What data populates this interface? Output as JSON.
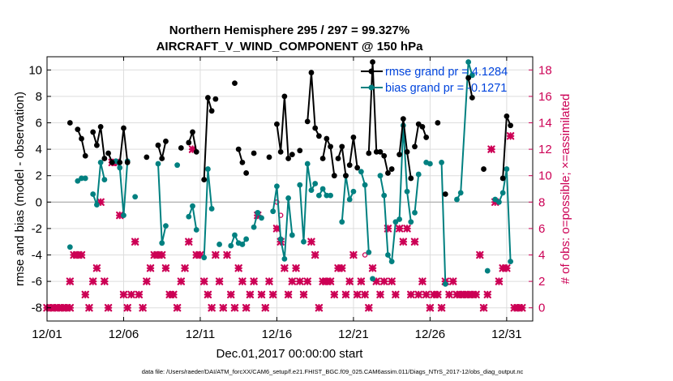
{
  "chart_data": {
    "type": "line",
    "title": "Northern Hemisphere 295 / 297 = 99.327%",
    "subtitle": "AIRCRAFT_V_WIND_COMPONENT @ 150 hPa",
    "xlabel": "Dec.01,2017 00:00:00 start",
    "ylabel": "rmse and bias (model - observation)",
    "y2label": "# of obs: o=possible; ×=assimilated",
    "footer": "data file: /Users/raeder/DAI/ATM_forcXX/CAM6_setup/f.e21.FHIST_BGC.f09_025.CAM6assim.011/Diags_NTrS_2017-12/obs_diag_output.nc",
    "xlim": [
      0,
      31.7
    ],
    "ylim": [
      -9,
      11
    ],
    "y2lim": [
      -1,
      19
    ],
    "grid": true,
    "x_ticks": [
      0,
      5,
      10,
      15,
      20,
      25,
      30
    ],
    "x_tick_labels": [
      "12/01",
      "12/06",
      "12/11",
      "12/16",
      "12/21",
      "12/26",
      "12/31"
    ],
    "y_ticks": [
      -8,
      -6,
      -4,
      -2,
      0,
      2,
      4,
      6,
      8,
      10
    ],
    "y_tick_labels": [
      "-8",
      "-6",
      "-4",
      "-2",
      "0",
      "2",
      "4",
      "6",
      "8",
      "10"
    ],
    "y2_ticks": [
      0,
      2,
      4,
      6,
      8,
      10,
      12,
      14,
      16,
      18
    ],
    "y2_tick_labels": [
      "0",
      "2",
      "4",
      "6",
      "8",
      "10",
      "12",
      "14",
      "16",
      "18"
    ],
    "legend_position": "top-right",
    "colors": {
      "rmse": "#000000",
      "bias": "#008080",
      "obs": "#cc0055",
      "legend_text": "#0044dd",
      "zero_line": "#aaaaaa",
      "grid": "#dddddd"
    },
    "series": [
      {
        "name": "rmse grand pr = 4.1284",
        "axis": "left",
        "color": "#000000",
        "segments": [
          [
            [
              1.5,
              6.0
            ]
          ],
          [
            [
              2.0,
              5.5
            ],
            [
              2.25,
              4.8
            ],
            [
              2.5,
              3.5
            ]
          ],
          [
            [
              3.0,
              5.3
            ],
            [
              3.25,
              4.3
            ],
            [
              3.5,
              5.7
            ],
            [
              3.75,
              3.3
            ]
          ],
          [
            [
              4.0,
              3.7
            ],
            [
              4.25,
              3.0
            ]
          ],
          [
            [
              4.75,
              3.0
            ],
            [
              5.0,
              5.6
            ],
            [
              5.25,
              3.0
            ]
          ],
          [
            [
              6.5,
              3.4
            ]
          ],
          [
            [
              7.25,
              4.3
            ],
            [
              7.5,
              3.3
            ],
            [
              7.75,
              4.6
            ]
          ],
          [
            [
              8.75,
              4.1
            ]
          ],
          [
            [
              9.25,
              4.5
            ],
            [
              9.5,
              5.3
            ],
            [
              9.75,
              3.8
            ]
          ],
          [
            [
              10.25,
              1.7
            ],
            [
              10.5,
              7.9
            ],
            [
              10.75,
              6.9
            ]
          ],
          [
            [
              11.0,
              7.8
            ]
          ],
          [
            [
              12.25,
              9.0
            ]
          ],
          [
            [
              12.5,
              4.0
            ],
            [
              12.75,
              3.0
            ]
          ],
          [
            [
              13.0,
              2.2
            ]
          ],
          [
            [
              13.5,
              3.7
            ]
          ],
          [
            [
              14.5,
              3.4
            ]
          ],
          [
            [
              15.0,
              5.9
            ],
            [
              15.25,
              3.8
            ],
            [
              15.5,
              8.0
            ],
            [
              15.75,
              3.3
            ]
          ],
          [
            [
              16.0,
              3.6
            ]
          ],
          [
            [
              16.5,
              3.9
            ]
          ],
          [
            [
              17.0,
              6.1
            ],
            [
              17.25,
              9.8
            ],
            [
              17.5,
              5.6
            ],
            [
              17.75,
              5.0
            ]
          ],
          [
            [
              18.0,
              3.3
            ],
            [
              18.25,
              4.8
            ],
            [
              18.5,
              4.2
            ],
            [
              18.75,
              2.0
            ]
          ],
          [
            [
              19.0,
              3.3
            ],
            [
              19.25,
              4.2
            ],
            [
              19.5,
              2.0
            ]
          ],
          [
            [
              19.75,
              2.8
            ],
            [
              20.0,
              4.9
            ],
            [
              20.25,
              2.6
            ]
          ],
          [
            [
              21.0,
              3.7
            ],
            [
              21.25,
              10.6
            ],
            [
              21.5,
              3.8
            ]
          ],
          [
            [
              21.75,
              3.8
            ],
            [
              22.0,
              3.5
            ],
            [
              22.25,
              2.2
            ]
          ],
          [
            [
              22.5,
              2.5
            ]
          ],
          [
            [
              23.0,
              3.6
            ],
            [
              23.25,
              6.3
            ],
            [
              23.5,
              3.8
            ],
            [
              23.75,
              1.8
            ]
          ],
          [
            [
              24.0,
              4.2
            ],
            [
              24.25,
              5.9
            ],
            [
              24.5,
              5.7
            ],
            [
              24.75,
              4.9
            ]
          ],
          [
            [
              25.5,
              6.0
            ]
          ],
          [
            [
              26.0,
              0.6
            ]
          ],
          [
            [
              27.5,
              9.4
            ],
            [
              27.75,
              7.9
            ]
          ],
          [
            [
              28.5,
              2.5
            ]
          ],
          [
            [
              29.75,
              1.8
            ],
            [
              30.0,
              6.5
            ],
            [
              30.25,
              5.8
            ]
          ]
        ]
      },
      {
        "name": "bias grand pr = -0.1271",
        "axis": "left",
        "color": "#008080",
        "segments": [
          [
            [
              1.5,
              -3.4
            ]
          ],
          [
            [
              2.0,
              1.6
            ],
            [
              2.25,
              1.8
            ],
            [
              2.5,
              1.8
            ]
          ],
          [
            [
              3.0,
              0.6
            ],
            [
              3.25,
              -0.2
            ],
            [
              3.5,
              3.0
            ],
            [
              3.75,
              1.7
            ]
          ],
          [
            [
              4.5,
              3.1
            ],
            [
              4.75,
              2.6
            ],
            [
              5.0,
              -1.0
            ],
            [
              5.25,
              3.1
            ]
          ],
          [
            [
              5.75,
              0.4
            ]
          ],
          [
            [
              7.25,
              2.9
            ],
            [
              7.5,
              -3.1
            ],
            [
              7.75,
              -1.8
            ]
          ],
          [
            [
              8.5,
              2.8
            ]
          ],
          [
            [
              9.25,
              -1.1
            ],
            [
              9.5,
              -0.3
            ],
            [
              9.75,
              -2.1
            ]
          ],
          [
            [
              10.25,
              -4.2
            ],
            [
              10.5,
              2.5
            ],
            [
              10.75,
              -0.5
            ]
          ],
          [
            [
              11.25,
              -3.2
            ]
          ],
          [
            [
              12.0,
              -3.3
            ],
            [
              12.25,
              -2.5
            ],
            [
              12.5,
              -3.1
            ]
          ],
          [
            [
              12.75,
              -3.2
            ],
            [
              13.0,
              -2.8
            ]
          ],
          [
            [
              13.5,
              -1.9
            ],
            [
              13.75,
              -0.8
            ],
            [
              14.0,
              -1.2
            ]
          ],
          [
            [
              14.75,
              -0.7
            ],
            [
              15.0,
              1.2
            ],
            [
              15.25,
              -2.8
            ],
            [
              15.5,
              -4.3
            ],
            [
              15.75,
              0.3
            ],
            [
              16.0,
              -2.5
            ]
          ],
          [
            [
              16.5,
              1.3
            ],
            [
              16.75,
              -3.0
            ],
            [
              17.0,
              2.9
            ],
            [
              17.25,
              0.9
            ],
            [
              17.5,
              1.4
            ]
          ],
          [
            [
              17.75,
              0.5
            ],
            [
              18.0,
              1.0
            ],
            [
              18.25,
              0.5
            ],
            [
              18.5,
              0.5
            ]
          ],
          [
            [
              19.25,
              -1.5
            ],
            [
              19.5,
              2.0
            ],
            [
              19.75,
              0.2
            ],
            [
              20.0,
              0.8
            ]
          ],
          [
            [
              20.5,
              2.3
            ],
            [
              20.75,
              1.3
            ],
            [
              21.0,
              -3.8
            ]
          ],
          [
            [
              21.25,
              -5.8
            ]
          ],
          [
            [
              21.75,
              2.0
            ],
            [
              22.0,
              0.5
            ],
            [
              22.25,
              -4.0
            ],
            [
              22.5,
              -4.5
            ],
            [
              22.75,
              -1.5
            ]
          ],
          [
            [
              23.0,
              -1.3
            ],
            [
              23.25,
              5.8
            ],
            [
              23.5,
              0.8
            ],
            [
              23.75,
              -1.5
            ]
          ],
          [
            [
              24.0,
              -0.8
            ],
            [
              24.25,
              2.1
            ]
          ],
          [
            [
              24.75,
              3.0
            ],
            [
              25.0,
              2.9
            ]
          ],
          [
            [
              25.75,
              3.0
            ],
            [
              26.0,
              -6.2
            ]
          ],
          [
            [
              26.75,
              0.2
            ],
            [
              27.0,
              0.7
            ],
            [
              27.5,
              10.6
            ],
            [
              27.75,
              9.6
            ]
          ],
          [
            [
              28.75,
              -5.2
            ]
          ],
          [
            [
              29.25,
              0.2
            ],
            [
              29.5,
              0.0
            ],
            [
              29.75,
              0.7
            ],
            [
              30.0,
              2.5
            ],
            [
              30.25,
              -4.5
            ]
          ]
        ]
      }
    ],
    "obs_assimilated": [
      [
        0.0,
        0
      ],
      [
        0.25,
        0
      ],
      [
        0.5,
        0
      ],
      [
        0.75,
        0
      ],
      [
        1.0,
        0
      ],
      [
        1.25,
        0
      ],
      [
        1.5,
        0
      ],
      [
        1.5,
        2
      ],
      [
        1.75,
        4
      ],
      [
        2.0,
        4
      ],
      [
        2.25,
        4
      ],
      [
        2.5,
        1
      ],
      [
        2.75,
        0
      ],
      [
        3.0,
        2
      ],
      [
        3.25,
        3
      ],
      [
        3.5,
        8
      ],
      [
        3.75,
        2
      ],
      [
        4.0,
        0
      ],
      [
        4.25,
        11
      ],
      [
        4.5,
        11
      ],
      [
        4.75,
        7
      ],
      [
        5.0,
        1
      ],
      [
        5.25,
        0
      ],
      [
        5.5,
        1
      ],
      [
        5.75,
        5
      ],
      [
        6.0,
        1
      ],
      [
        6.25,
        0
      ],
      [
        6.5,
        2
      ],
      [
        6.75,
        3
      ],
      [
        7.0,
        4
      ],
      [
        7.25,
        4
      ],
      [
        7.5,
        4
      ],
      [
        7.75,
        3
      ],
      [
        8.0,
        1
      ],
      [
        8.25,
        1
      ],
      [
        8.5,
        0
      ],
      [
        8.75,
        2
      ],
      [
        9.0,
        3
      ],
      [
        9.25,
        5
      ],
      [
        9.5,
        12
      ],
      [
        9.75,
        4
      ],
      [
        10.0,
        4
      ],
      [
        10.25,
        2
      ],
      [
        10.5,
        1
      ],
      [
        10.75,
        0
      ],
      [
        11.0,
        4
      ],
      [
        11.25,
        2
      ],
      [
        11.5,
        0
      ],
      [
        11.75,
        4
      ],
      [
        12.0,
        1
      ],
      [
        12.25,
        0
      ],
      [
        12.5,
        3
      ],
      [
        12.75,
        2
      ],
      [
        13.0,
        0
      ],
      [
        13.25,
        1
      ],
      [
        13.5,
        2
      ],
      [
        13.75,
        7
      ],
      [
        14.0,
        1
      ],
      [
        14.25,
        0
      ],
      [
        14.5,
        2
      ],
      [
        14.75,
        1
      ],
      [
        15.0,
        6
      ],
      [
        15.25,
        5
      ],
      [
        15.5,
        3
      ],
      [
        15.75,
        1
      ],
      [
        16.0,
        2
      ],
      [
        16.25,
        3
      ],
      [
        16.5,
        2
      ],
      [
        16.75,
        1
      ],
      [
        17.0,
        2
      ],
      [
        17.25,
        5
      ],
      [
        17.5,
        4
      ],
      [
        17.75,
        0
      ],
      [
        18.0,
        2
      ],
      [
        18.25,
        2
      ],
      [
        18.5,
        2
      ],
      [
        18.75,
        1
      ],
      [
        19.0,
        3
      ],
      [
        19.25,
        3
      ],
      [
        19.5,
        1
      ],
      [
        19.75,
        2
      ],
      [
        20.0,
        4
      ],
      [
        20.25,
        1
      ],
      [
        20.5,
        2
      ],
      [
        20.75,
        1
      ],
      [
        21.0,
        0
      ],
      [
        21.25,
        3
      ],
      [
        21.5,
        2
      ],
      [
        21.75,
        1
      ],
      [
        22.0,
        2
      ],
      [
        22.25,
        6
      ],
      [
        22.5,
        2
      ],
      [
        22.75,
        1
      ],
      [
        23.0,
        6
      ],
      [
        23.25,
        5
      ],
      [
        23.5,
        6
      ],
      [
        23.75,
        1
      ],
      [
        24.0,
        5
      ],
      [
        24.25,
        1
      ],
      [
        24.5,
        2
      ],
      [
        24.75,
        1
      ],
      [
        25.0,
        0
      ],
      [
        25.25,
        1
      ],
      [
        25.5,
        1
      ],
      [
        25.75,
        0
      ],
      [
        26.0,
        2
      ],
      [
        26.25,
        1
      ],
      [
        26.5,
        2
      ],
      [
        26.75,
        1
      ],
      [
        27.0,
        1
      ],
      [
        27.25,
        1
      ],
      [
        27.5,
        1
      ],
      [
        27.75,
        1
      ],
      [
        28.0,
        1
      ],
      [
        28.25,
        4
      ],
      [
        28.5,
        0
      ],
      [
        28.75,
        1
      ],
      [
        29.0,
        12
      ],
      [
        29.25,
        8
      ],
      [
        29.5,
        2
      ],
      [
        29.75,
        3
      ],
      [
        30.0,
        3
      ],
      [
        30.25,
        13
      ],
      [
        30.5,
        0
      ],
      [
        30.75,
        0
      ],
      [
        31.0,
        0
      ]
    ],
    "obs_possible": [
      [
        15.0,
        8
      ],
      [
        15.25,
        7
      ],
      [
        20.75,
        4
      ]
    ]
  }
}
